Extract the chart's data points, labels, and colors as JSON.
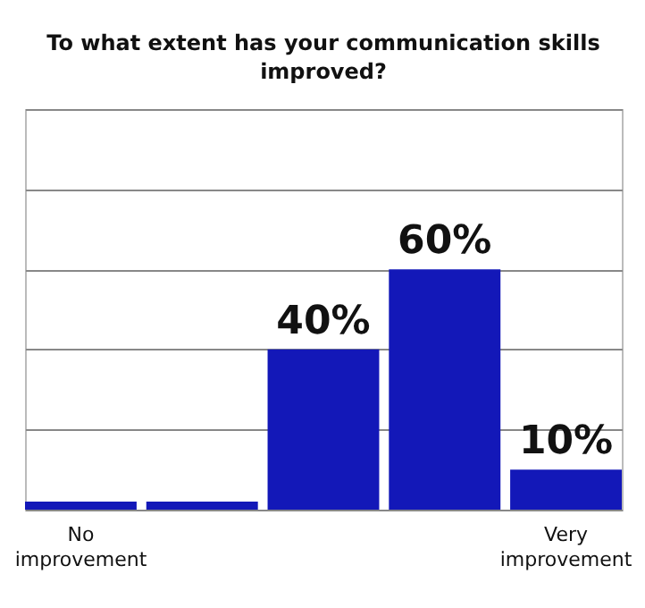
{
  "chart_data": {
    "type": "bar",
    "title": "To what extent has your communication skills improved?",
    "categories": [
      "No improvement",
      null,
      null,
      null,
      "Very improvement"
    ],
    "values": [
      2,
      2,
      40,
      60,
      10
    ],
    "value_labels": [
      null,
      null,
      "40%",
      "60%",
      "10%"
    ],
    "color": "#1318b8",
    "ylim": [
      0,
      100
    ],
    "yticks": [
      {
        "value": 0,
        "label": null
      },
      {
        "value": 20,
        "label": null
      },
      {
        "value": 40,
        "label": null
      },
      {
        "value": 60,
        "label": null
      },
      {
        "value": 80,
        "label": null
      },
      {
        "value": 100,
        "label": null
      }
    ],
    "grid": "y",
    "tick_labels": "x"
  }
}
